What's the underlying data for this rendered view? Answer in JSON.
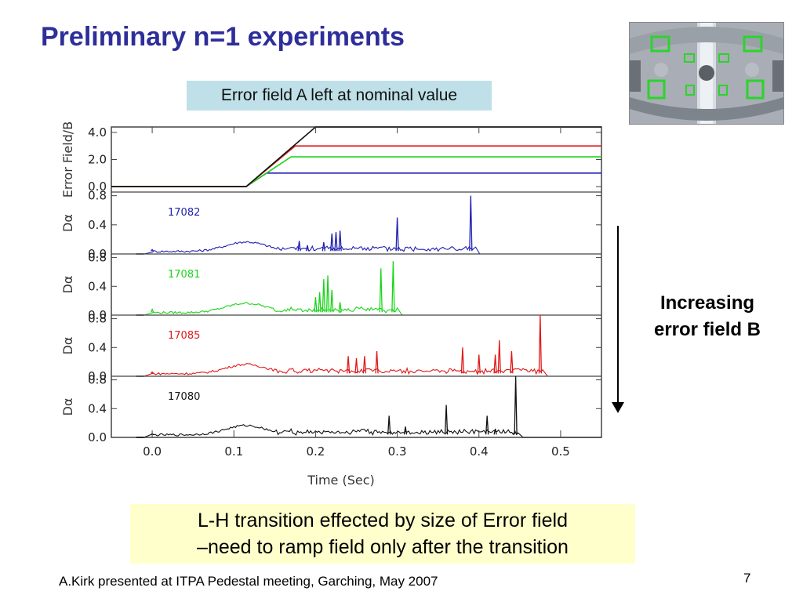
{
  "slide": {
    "title": "Preliminary n=1 experiments",
    "label_a": "Error field A left at nominal value",
    "side_note": [
      "Increasing",
      "error field B"
    ],
    "bottom_box": [
      "L-H transition effected by size of Error field",
      "–need to ramp field only after the transition"
    ],
    "credit": "A.Kirk presented at ITPA Pedestal meeting, Garching, May 2007",
    "page_number": "7",
    "photo_icon": "tokamak-interior-photo-icon"
  },
  "chart_data": {
    "type": "line",
    "xlabel": "Time (Sec)",
    "xlim": [
      -0.05,
      0.55
    ],
    "x_ticks": [
      "0.0",
      "0.1",
      "0.2",
      "0.3",
      "0.4",
      "0.5"
    ],
    "panels": [
      {
        "id": "error-field",
        "ylabel": "Error Field/B",
        "ylim": [
          -0.4,
          4.4
        ],
        "y_ticks": [
          "0.0",
          "2.0",
          "4.0"
        ],
        "series": [
          {
            "color": "#1f1fb0",
            "x": [
              -0.05,
              0.115,
              0.14,
              0.55
            ],
            "y": [
              0.0,
              0.0,
              1.0,
              1.0
            ]
          },
          {
            "color": "#1ad41a",
            "x": [
              -0.05,
              0.115,
              0.17,
              0.55
            ],
            "y": [
              0.0,
              0.0,
              2.2,
              2.2
            ]
          },
          {
            "color": "#e01818",
            "x": [
              -0.05,
              0.115,
              0.175,
              0.55
            ],
            "y": [
              0.0,
              0.0,
              3.0,
              3.0
            ]
          },
          {
            "color": "#111111",
            "x": [
              -0.05,
              0.115,
              0.2,
              0.55
            ],
            "y": [
              0.0,
              0.0,
              4.4,
              4.4
            ]
          }
        ]
      },
      {
        "id": "d-alpha-17082",
        "ylabel": "Dα",
        "shot": "17082",
        "color": "#1f1fb0",
        "ylim": [
          0.0,
          0.85
        ],
        "y_ticks": [
          "0.0",
          "0.4",
          "0.8"
        ],
        "transition_t": 0.397,
        "spikes": [
          [
            0.0,
            0.06
          ],
          [
            0.18,
            0.18
          ],
          [
            0.19,
            0.12
          ],
          [
            0.21,
            0.16
          ],
          [
            0.22,
            0.28
          ],
          [
            0.225,
            0.3
          ],
          [
            0.23,
            0.32
          ],
          [
            0.3,
            0.5
          ],
          [
            0.39,
            0.8
          ]
        ]
      },
      {
        "id": "d-alpha-17081",
        "ylabel": "Dα",
        "shot": "17081",
        "color": "#1ad41a",
        "ylim": [
          0.0,
          0.85
        ],
        "y_ticks": [
          "0.0",
          "0.4",
          "0.8"
        ],
        "transition_t": 0.302,
        "spikes": [
          [
            0.0,
            0.08
          ],
          [
            0.2,
            0.25
          ],
          [
            0.205,
            0.32
          ],
          [
            0.21,
            0.5
          ],
          [
            0.215,
            0.55
          ],
          [
            0.22,
            0.35
          ],
          [
            0.23,
            0.18
          ],
          [
            0.28,
            0.65
          ],
          [
            0.295,
            0.75
          ]
        ]
      },
      {
        "id": "d-alpha-17085",
        "ylabel": "Dα",
        "shot": "17085",
        "color": "#e01818",
        "ylim": [
          0.0,
          0.85
        ],
        "y_ticks": [
          "0.0",
          "0.4",
          "0.8"
        ],
        "transition_t": 0.48,
        "spikes": [
          [
            0.0,
            0.06
          ],
          [
            0.24,
            0.28
          ],
          [
            0.25,
            0.25
          ],
          [
            0.26,
            0.28
          ],
          [
            0.275,
            0.35
          ],
          [
            0.38,
            0.4
          ],
          [
            0.4,
            0.3
          ],
          [
            0.42,
            0.3
          ],
          [
            0.425,
            0.5
          ],
          [
            0.44,
            0.35
          ],
          [
            0.475,
            0.85
          ]
        ]
      },
      {
        "id": "d-alpha-17080",
        "ylabel": "Dα",
        "shot": "17080",
        "color": "#111111",
        "ylim": [
          0.0,
          0.85
        ],
        "y_ticks": [
          "0.0",
          "0.4",
          "0.8"
        ],
        "transition_t": 0.45,
        "spikes": [
          [
            0.0,
            0.05
          ],
          [
            0.29,
            0.3
          ],
          [
            0.31,
            0.15
          ],
          [
            0.36,
            0.45
          ],
          [
            0.41,
            0.3
          ],
          [
            0.42,
            0.12
          ],
          [
            0.445,
            0.85
          ]
        ]
      }
    ]
  }
}
